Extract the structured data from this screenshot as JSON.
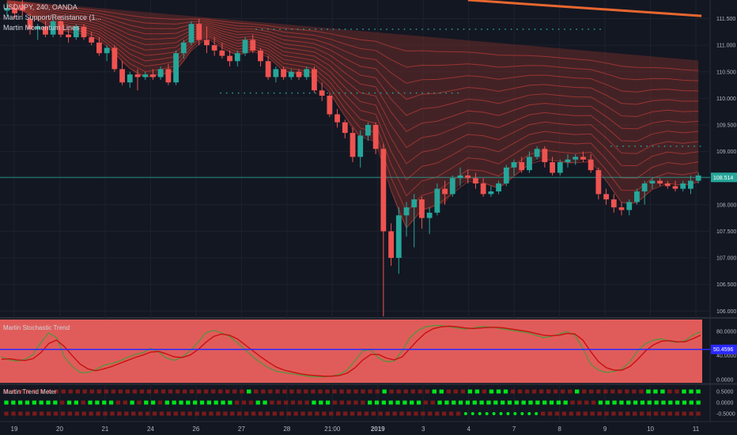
{
  "header": {
    "symbol_line": "USD/JPY, 240, OANDA",
    "indicator_1": "Martin Support/Resistance (1...",
    "indicator_2": "Martin Momentum Lines"
  },
  "panes": {
    "stoch_title": "Martin Stochastic Trend",
    "meter_title": "Martin Trend Meter"
  },
  "chart_data": [
    {
      "type": "candlestick",
      "title": "USD/JPY, 240, OANDA",
      "ylim": [
        105.9,
        111.85
      ],
      "y_ticks": [
        "111.500",
        "111.000",
        "110.500",
        "110.000",
        "109.500",
        "109.000",
        "108.500",
        "108.000",
        "107.500",
        "107.000",
        "106.500",
        "106.000"
      ],
      "x_tick_labels": [
        "19",
        "20",
        "21",
        "24",
        "26",
        "27",
        "28",
        "21:00",
        "2019",
        "3",
        "4",
        "7",
        "8",
        "9",
        "10",
        "11"
      ],
      "last_price": "108.514",
      "candles": [
        {
          "o": 111.65,
          "h": 111.8,
          "l": 111.55,
          "c": 111.7
        },
        {
          "o": 111.7,
          "h": 111.8,
          "l": 111.5,
          "c": 111.6
        },
        {
          "o": 111.75,
          "h": 111.85,
          "l": 111.55,
          "c": 111.65
        },
        {
          "o": 111.5,
          "h": 111.6,
          "l": 111.2,
          "c": 111.3
        },
        {
          "o": 111.3,
          "h": 111.4,
          "l": 111.1,
          "c": 111.35
        },
        {
          "o": 111.35,
          "h": 111.45,
          "l": 111.15,
          "c": 111.2
        },
        {
          "o": 111.2,
          "h": 111.5,
          "l": 111.15,
          "c": 111.45
        },
        {
          "o": 111.45,
          "h": 111.55,
          "l": 111.15,
          "c": 111.2
        },
        {
          "o": 111.2,
          "h": 111.3,
          "l": 111.05,
          "c": 111.15
        },
        {
          "o": 111.15,
          "h": 111.4,
          "l": 111.1,
          "c": 111.35
        },
        {
          "o": 111.35,
          "h": 111.4,
          "l": 111.1,
          "c": 111.15
        },
        {
          "o": 111.15,
          "h": 111.25,
          "l": 111.0,
          "c": 111.05
        },
        {
          "o": 111.05,
          "h": 111.15,
          "l": 110.8,
          "c": 110.85
        },
        {
          "o": 110.85,
          "h": 111.0,
          "l": 110.7,
          "c": 110.95
        },
        {
          "o": 110.95,
          "h": 111.0,
          "l": 110.5,
          "c": 110.55
        },
        {
          "o": 110.55,
          "h": 110.7,
          "l": 110.25,
          "c": 110.3
        },
        {
          "o": 110.3,
          "h": 110.5,
          "l": 110.2,
          "c": 110.45
        },
        {
          "o": 110.45,
          "h": 110.55,
          "l": 110.15,
          "c": 110.4
        },
        {
          "o": 110.4,
          "h": 110.5,
          "l": 110.35,
          "c": 110.45
        },
        {
          "o": 110.45,
          "h": 110.55,
          "l": 110.35,
          "c": 110.4
        },
        {
          "o": 110.4,
          "h": 110.6,
          "l": 110.35,
          "c": 110.55
        },
        {
          "o": 110.55,
          "h": 110.65,
          "l": 110.25,
          "c": 110.3
        },
        {
          "o": 110.3,
          "h": 110.9,
          "l": 110.25,
          "c": 110.85
        },
        {
          "o": 110.85,
          "h": 111.1,
          "l": 110.75,
          "c": 111.05
        },
        {
          "o": 111.05,
          "h": 111.45,
          "l": 111.0,
          "c": 111.4
        },
        {
          "o": 111.4,
          "h": 111.5,
          "l": 111.0,
          "c": 111.1
        },
        {
          "o": 111.1,
          "h": 111.35,
          "l": 110.85,
          "c": 111.0
        },
        {
          "o": 111.0,
          "h": 111.15,
          "l": 110.8,
          "c": 110.9
        },
        {
          "o": 110.9,
          "h": 111.05,
          "l": 110.75,
          "c": 110.8
        },
        {
          "o": 110.8,
          "h": 110.9,
          "l": 110.6,
          "c": 110.7
        },
        {
          "o": 110.7,
          "h": 110.9,
          "l": 110.6,
          "c": 110.85
        },
        {
          "o": 110.85,
          "h": 111.15,
          "l": 110.8,
          "c": 111.1
        },
        {
          "o": 111.1,
          "h": 111.2,
          "l": 110.85,
          "c": 110.9
        },
        {
          "o": 110.9,
          "h": 110.95,
          "l": 110.6,
          "c": 110.7
        },
        {
          "o": 110.7,
          "h": 110.8,
          "l": 110.35,
          "c": 110.4
        },
        {
          "o": 110.4,
          "h": 110.6,
          "l": 110.3,
          "c": 110.55
        },
        {
          "o": 110.55,
          "h": 110.6,
          "l": 110.35,
          "c": 110.4
        },
        {
          "o": 110.4,
          "h": 110.55,
          "l": 110.35,
          "c": 110.5
        },
        {
          "o": 110.5,
          "h": 110.55,
          "l": 110.35,
          "c": 110.4
        },
        {
          "o": 110.4,
          "h": 110.6,
          "l": 110.35,
          "c": 110.55
        },
        {
          "o": 110.55,
          "h": 110.6,
          "l": 110.1,
          "c": 110.15
        },
        {
          "o": 110.15,
          "h": 110.3,
          "l": 109.95,
          "c": 110.05
        },
        {
          "o": 110.05,
          "h": 110.1,
          "l": 109.65,
          "c": 109.7
        },
        {
          "o": 109.7,
          "h": 109.8,
          "l": 109.45,
          "c": 109.55
        },
        {
          "o": 109.55,
          "h": 109.6,
          "l": 109.25,
          "c": 109.35
        },
        {
          "o": 109.35,
          "h": 109.45,
          "l": 108.8,
          "c": 108.9
        },
        {
          "o": 108.9,
          "h": 109.4,
          "l": 108.7,
          "c": 109.3
        },
        {
          "o": 109.3,
          "h": 109.55,
          "l": 109.2,
          "c": 109.5
        },
        {
          "o": 109.5,
          "h": 109.55,
          "l": 108.95,
          "c": 109.05
        },
        {
          "o": 109.05,
          "h": 109.15,
          "l": 105.9,
          "c": 107.5
        },
        {
          "o": 107.5,
          "h": 107.65,
          "l": 106.85,
          "c": 107.0
        },
        {
          "o": 107.0,
          "h": 107.95,
          "l": 106.7,
          "c": 107.8
        },
        {
          "o": 107.8,
          "h": 108.05,
          "l": 107.4,
          "c": 107.95
        },
        {
          "o": 107.95,
          "h": 108.2,
          "l": 107.2,
          "c": 108.1
        },
        {
          "o": 108.1,
          "h": 108.15,
          "l": 107.55,
          "c": 107.75
        },
        {
          "o": 107.75,
          "h": 107.95,
          "l": 107.45,
          "c": 107.85
        },
        {
          "o": 107.85,
          "h": 108.4,
          "l": 107.8,
          "c": 108.3
        },
        {
          "o": 108.3,
          "h": 108.45,
          "l": 108.0,
          "c": 108.2
        },
        {
          "o": 108.2,
          "h": 108.55,
          "l": 108.15,
          "c": 108.5
        },
        {
          "o": 108.5,
          "h": 108.7,
          "l": 108.35,
          "c": 108.55
        },
        {
          "o": 108.55,
          "h": 108.65,
          "l": 108.4,
          "c": 108.5
        },
        {
          "o": 108.5,
          "h": 108.6,
          "l": 108.3,
          "c": 108.4
        },
        {
          "o": 108.4,
          "h": 108.5,
          "l": 108.15,
          "c": 108.2
        },
        {
          "o": 108.2,
          "h": 108.35,
          "l": 108.15,
          "c": 108.25
        },
        {
          "o": 108.25,
          "h": 108.45,
          "l": 108.2,
          "c": 108.4
        },
        {
          "o": 108.4,
          "h": 108.75,
          "l": 108.35,
          "c": 108.7
        },
        {
          "o": 108.7,
          "h": 108.85,
          "l": 108.55,
          "c": 108.8
        },
        {
          "o": 108.8,
          "h": 108.9,
          "l": 108.6,
          "c": 108.65
        },
        {
          "o": 108.65,
          "h": 109.0,
          "l": 108.6,
          "c": 108.9
        },
        {
          "o": 108.9,
          "h": 109.1,
          "l": 108.85,
          "c": 109.05
        },
        {
          "o": 109.05,
          "h": 109.1,
          "l": 108.7,
          "c": 108.8
        },
        {
          "o": 108.8,
          "h": 108.9,
          "l": 108.55,
          "c": 108.6
        },
        {
          "o": 108.6,
          "h": 108.85,
          "l": 108.55,
          "c": 108.8
        },
        {
          "o": 108.8,
          "h": 108.95,
          "l": 108.7,
          "c": 108.85
        },
        {
          "o": 108.85,
          "h": 108.95,
          "l": 108.75,
          "c": 108.9
        },
        {
          "o": 108.9,
          "h": 109.0,
          "l": 108.8,
          "c": 108.85
        },
        {
          "o": 108.85,
          "h": 108.95,
          "l": 108.6,
          "c": 108.65
        },
        {
          "o": 108.65,
          "h": 108.7,
          "l": 108.1,
          "c": 108.2
        },
        {
          "o": 108.2,
          "h": 108.3,
          "l": 108.0,
          "c": 108.1
        },
        {
          "o": 108.1,
          "h": 108.2,
          "l": 107.85,
          "c": 107.95
        },
        {
          "o": 107.95,
          "h": 108.05,
          "l": 107.8,
          "c": 107.9
        },
        {
          "o": 107.9,
          "h": 108.1,
          "l": 107.8,
          "c": 108.05
        },
        {
          "o": 108.05,
          "h": 108.3,
          "l": 108.0,
          "c": 108.25
        },
        {
          "o": 108.25,
          "h": 108.45,
          "l": 108.0,
          "c": 108.4
        },
        {
          "o": 108.4,
          "h": 108.5,
          "l": 108.3,
          "c": 108.45
        },
        {
          "o": 108.45,
          "h": 108.5,
          "l": 108.35,
          "c": 108.4
        },
        {
          "o": 108.4,
          "h": 108.45,
          "l": 108.3,
          "c": 108.35
        },
        {
          "o": 108.35,
          "h": 108.45,
          "l": 108.25,
          "c": 108.3
        },
        {
          "o": 108.3,
          "h": 108.45,
          "l": 108.25,
          "c": 108.4
        },
        {
          "o": 108.3,
          "h": 108.55,
          "l": 108.2,
          "c": 108.45
        },
        {
          "o": 108.45,
          "h": 108.6,
          "l": 108.4,
          "c": 108.55
        }
      ],
      "resistance_levels": [
        {
          "value": 111.3,
          "x_from": 0.36,
          "x_to": 0.86
        },
        {
          "value": 110.1,
          "x_from": 0.31,
          "x_to": 0.66
        },
        {
          "value": 109.1,
          "x_from": 0.86,
          "x_to": 1.0
        }
      ],
      "colors": {
        "up": "#26a69a",
        "down": "#ef5350",
        "band": "#6b2b2a",
        "line": "#e0453a",
        "background": "#131722",
        "tag": "#26a69a"
      }
    },
    {
      "type": "line",
      "title": "Martin Stochastic Trend",
      "ylim": [
        -5,
        100
      ],
      "y_ticks": [
        "80.0000",
        "40.0000",
        "0.0000"
      ],
      "current_value": "50.4596",
      "midline": 50.46,
      "series": [
        {
          "values": [
            38,
            33,
            31,
            34,
            42,
            62,
            78,
            70,
            38,
            22,
            12,
            12,
            17,
            24,
            27,
            31,
            37,
            42,
            45,
            52,
            46,
            36,
            32,
            38,
            48,
            62,
            78,
            82,
            78,
            72,
            62,
            50,
            38,
            28,
            20,
            14,
            12,
            10,
            8,
            6,
            5,
            5,
            6,
            9,
            16,
            32,
            48,
            50,
            36,
            30,
            31,
            48,
            70,
            82,
            88,
            90,
            90,
            88,
            86,
            84,
            86,
            88,
            88,
            86,
            84,
            82,
            80,
            78,
            74,
            70,
            72,
            76,
            80,
            74,
            52,
            26,
            16,
            12,
            14,
            18,
            30,
            48,
            60,
            66,
            68,
            64,
            62,
            65,
            74,
            80
          ]
        },
        {
          "values": [
            34,
            35,
            33,
            32,
            35,
            45,
            60,
            66,
            55,
            40,
            26,
            18,
            15,
            18,
            22,
            27,
            32,
            37,
            41,
            46,
            47,
            43,
            38,
            37,
            41,
            50,
            62,
            72,
            76,
            74,
            68,
            58,
            48,
            38,
            29,
            21,
            16,
            13,
            10,
            8,
            7,
            6,
            6,
            7,
            11,
            20,
            33,
            42,
            42,
            36,
            33,
            38,
            52,
            66,
            78,
            85,
            88,
            89,
            88,
            86,
            85,
            86,
            87,
            87,
            86,
            84,
            82,
            80,
            77,
            74,
            73,
            74,
            77,
            76,
            66,
            47,
            30,
            20,
            16,
            16,
            22,
            34,
            48,
            58,
            64,
            65,
            63,
            63,
            68,
            74
          ]
        }
      ],
      "colors": {
        "fill": "#e05c5a",
        "fast": "#5f8f3f",
        "slow": "#c81010",
        "midline": "#2929ff",
        "tag": "#2929ff"
      }
    },
    {
      "type": "heatmap",
      "title": "Martin Trend Meter",
      "y_ticks": [
        "0.5000",
        "0.0000",
        "-0.5000"
      ],
      "rows": [
        {
          "pattern": "RRRRRRRRRRRRRRRRRRRRRRRRRRRRRRRRRRGRRRRRRRRRRRRRRRRRRGRRRRRRGGRRRGGRGGGRRRRRRRRRGRRRRRRRRRGGGRRGGG"
        },
        {
          "pattern": "GGGGGGGGRGGRGGGGRRGRGGRGGGGGGGGGGRRRGGRRRRRRGGGRRRRRGGGGGGGGRRGGGGGGGGGGGGGGGGGGGRRRRGGGGGGGGGGGGGGG"
        },
        {
          "pattern": "RRRRRRRRRRRRRRRRRRRRRRRRRRRRRRRRRRRRRRRRRRRRRRRRRRRRRRRRRRRRRRRRRGGGGGGGGGGGRRRRRRRRRRRRRRRRRRRRRRR"
        }
      ],
      "colors": {
        "green": "#00e61a",
        "red": "#7a1a1a"
      }
    }
  ]
}
